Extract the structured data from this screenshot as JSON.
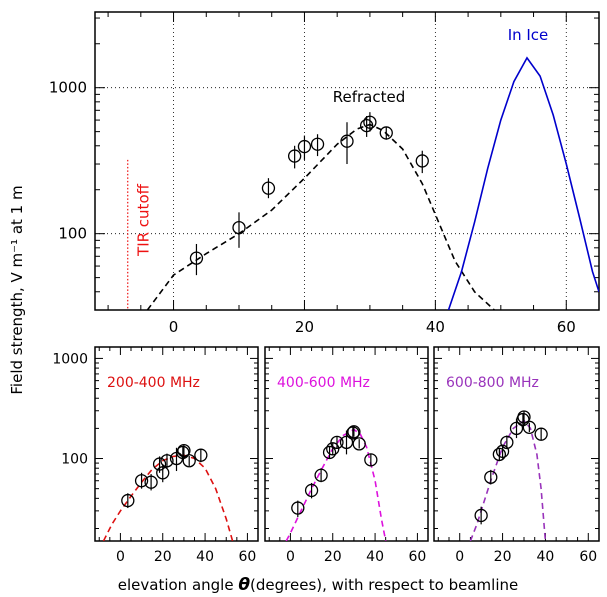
{
  "ylabel": "Field strength, V m⁻¹ at 1 m",
  "xlabel_parts": [
    "elevation angle ",
    "θ",
    "(degrees), with respect to beamline"
  ],
  "colors": {
    "axis": "#000000",
    "grid": "#000000",
    "refracted": "#000000",
    "in_ice": "#0000cc",
    "tir": "#ee1111",
    "band_200_400": "#dd1111",
    "band_400_600": "#dd11dd",
    "band_600_800": "#9933bb"
  },
  "chart_data": [
    {
      "type": "scatter",
      "panel": "main",
      "xlim": [
        -12,
        65
      ],
      "ylim": [
        30,
        3300
      ],
      "yscale": "log",
      "xticks": [
        0,
        20,
        40,
        60
      ],
      "yticks": [
        100,
        1000
      ],
      "xtick_labels": [
        "0",
        "20",
        "40",
        "60"
      ],
      "ytick_labels": [
        "100",
        "1000"
      ],
      "grid": true,
      "annotations": {
        "refracted": "Refracted",
        "in_ice": "In Ice",
        "tir": "TIR cutoff"
      },
      "tir_cutoff_x": -7,
      "points": [
        {
          "x": 3.5,
          "y": 68,
          "ylo": 52,
          "yhi": 85
        },
        {
          "x": 10,
          "y": 110,
          "ylo": 80,
          "yhi": 140
        },
        {
          "x": 14.5,
          "y": 205,
          "ylo": 175,
          "yhi": 240
        },
        {
          "x": 18.5,
          "y": 340,
          "ylo": 280,
          "yhi": 400
        },
        {
          "x": 20,
          "y": 395,
          "ylo": 320,
          "yhi": 470
        },
        {
          "x": 22,
          "y": 410,
          "ylo": 340,
          "yhi": 480
        },
        {
          "x": 26.5,
          "y": 430,
          "ylo": 300,
          "yhi": 580
        },
        {
          "x": 29.5,
          "y": 550,
          "ylo": 460,
          "yhi": 640
        },
        {
          "x": 30,
          "y": 580,
          "ylo": 500,
          "yhi": 680
        },
        {
          "x": 32.5,
          "y": 490,
          "ylo": 440,
          "yhi": 540
        },
        {
          "x": 38,
          "y": 315,
          "ylo": 260,
          "yhi": 370
        }
      ],
      "refracted_curve": {
        "x": [
          -4,
          0,
          5,
          10,
          15,
          20,
          25,
          28,
          30,
          32,
          35,
          38,
          40,
          43,
          46,
          49
        ],
        "y": [
          30,
          52,
          73,
          100,
          145,
          240,
          410,
          520,
          560,
          510,
          380,
          220,
          135,
          65,
          40,
          30
        ]
      },
      "in_ice_curve": {
        "x": [
          42,
          44,
          46,
          48,
          50,
          52,
          54,
          56,
          58,
          60,
          62,
          64,
          65
        ],
        "y": [
          30,
          55,
          120,
          280,
          600,
          1100,
          1600,
          1200,
          650,
          300,
          130,
          55,
          40
        ]
      }
    },
    {
      "type": "scatter",
      "panel": "band-1",
      "label": "200-400 MHz",
      "xlim": [
        -12,
        65
      ],
      "ylim": [
        15,
        1300
      ],
      "yscale": "log",
      "xticks": [
        0,
        20,
        40,
        60
      ],
      "xtick_labels": [
        "0",
        "20",
        "40",
        "60"
      ],
      "yticks": [
        100,
        1000
      ],
      "ytick_labels": [
        "100",
        "1000"
      ],
      "points": [
        {
          "x": 3.5,
          "y": 38,
          "ylo": 32,
          "yhi": 45
        },
        {
          "x": 10,
          "y": 60,
          "ylo": 50,
          "yhi": 72
        },
        {
          "x": 14.5,
          "y": 58,
          "ylo": 48,
          "yhi": 70
        },
        {
          "x": 18.5,
          "y": 88,
          "ylo": 72,
          "yhi": 105
        },
        {
          "x": 20,
          "y": 72,
          "ylo": 58,
          "yhi": 88
        },
        {
          "x": 22,
          "y": 95,
          "ylo": 80,
          "yhi": 112
        },
        {
          "x": 26.5,
          "y": 100,
          "ylo": 75,
          "yhi": 128
        },
        {
          "x": 29.5,
          "y": 115,
          "ylo": 98,
          "yhi": 132
        },
        {
          "x": 30,
          "y": 120,
          "ylo": 104,
          "yhi": 138
        },
        {
          "x": 32.5,
          "y": 95,
          "ylo": 84,
          "yhi": 106
        },
        {
          "x": 38,
          "y": 108,
          "ylo": 92,
          "yhi": 124
        }
      ],
      "curve": {
        "x": [
          -8,
          -4,
          0,
          5,
          10,
          15,
          20,
          25,
          30,
          35,
          40,
          45,
          50,
          53
        ],
        "y": [
          15,
          22,
          30,
          42,
          58,
          78,
          95,
          105,
          108,
          100,
          80,
          50,
          25,
          15
        ]
      }
    },
    {
      "type": "scatter",
      "panel": "band-2",
      "label": "400-600 MHz",
      "xlim": [
        -12,
        65
      ],
      "ylim": [
        15,
        1300
      ],
      "yscale": "log",
      "xticks": [
        0,
        20,
        40,
        60
      ],
      "xtick_labels": [
        "0",
        "20",
        "40",
        "60"
      ],
      "points": [
        {
          "x": 3.5,
          "y": 32,
          "ylo": 26,
          "yhi": 38
        },
        {
          "x": 10,
          "y": 48,
          "ylo": 40,
          "yhi": 57
        },
        {
          "x": 14.5,
          "y": 68,
          "ylo": 58,
          "yhi": 80
        },
        {
          "x": 18.5,
          "y": 115,
          "ylo": 100,
          "yhi": 132
        },
        {
          "x": 20,
          "y": 125,
          "ylo": 108,
          "yhi": 145
        },
        {
          "x": 22,
          "y": 145,
          "ylo": 125,
          "yhi": 168
        },
        {
          "x": 26.5,
          "y": 145,
          "ylo": 110,
          "yhi": 190
        },
        {
          "x": 29.5,
          "y": 180,
          "ylo": 160,
          "yhi": 205
        },
        {
          "x": 30,
          "y": 185,
          "ylo": 165,
          "yhi": 210
        },
        {
          "x": 32.5,
          "y": 140,
          "ylo": 126,
          "yhi": 156
        },
        {
          "x": 38,
          "y": 97,
          "ylo": 84,
          "yhi": 112
        }
      ],
      "curve": {
        "x": [
          -2,
          0,
          5,
          10,
          15,
          20,
          25,
          30,
          33,
          36,
          40,
          43,
          45
        ],
        "y": [
          15,
          18,
          30,
          50,
          80,
          125,
          170,
          195,
          175,
          130,
          60,
          25,
          15
        ]
      }
    },
    {
      "type": "scatter",
      "panel": "band-3",
      "label": "600-800 MHz",
      "xlim": [
        -12,
        65
      ],
      "ylim": [
        15,
        1300
      ],
      "yscale": "log",
      "xticks": [
        0,
        20,
        40,
        60
      ],
      "xtick_labels": [
        "0",
        "20",
        "40",
        "60"
      ],
      "points": [
        {
          "x": 10,
          "y": 27,
          "ylo": 22,
          "yhi": 33
        },
        {
          "x": 14.5,
          "y": 65,
          "ylo": 55,
          "yhi": 77
        },
        {
          "x": 18.5,
          "y": 110,
          "ylo": 94,
          "yhi": 128
        },
        {
          "x": 20,
          "y": 118,
          "ylo": 100,
          "yhi": 138
        },
        {
          "x": 22,
          "y": 145,
          "ylo": 124,
          "yhi": 170
        },
        {
          "x": 26.5,
          "y": 200,
          "ylo": 160,
          "yhi": 250
        },
        {
          "x": 29.5,
          "y": 245,
          "ylo": 215,
          "yhi": 280
        },
        {
          "x": 30,
          "y": 260,
          "ylo": 228,
          "yhi": 296
        },
        {
          "x": 32.5,
          "y": 205,
          "ylo": 184,
          "yhi": 228
        },
        {
          "x": 38,
          "y": 175,
          "ylo": 152,
          "yhi": 200
        }
      ],
      "curve": {
        "x": [
          5,
          8,
          10,
          15,
          20,
          25,
          30,
          33,
          36,
          38,
          40
        ],
        "y": [
          15,
          22,
          30,
          65,
          130,
          200,
          240,
          200,
          110,
          50,
          15
        ]
      }
    }
  ]
}
